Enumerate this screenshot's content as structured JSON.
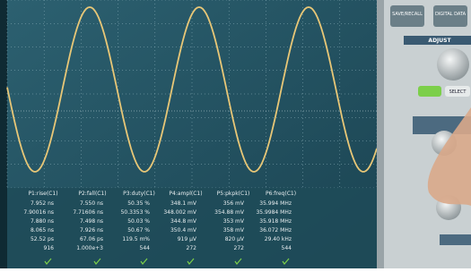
{
  "panel": {
    "buttons": [
      "SAVE/RECALL",
      "DIGITAL DATA"
    ],
    "adjust": "ADJUST",
    "select": "SELECT"
  },
  "measurements": {
    "columns": [
      {
        "header": "P1:rise(C1)",
        "values": [
          "7.952 ns",
          "7.90016 ns",
          "7.880 ns",
          "8.065 ns",
          "52.52 ps",
          "916"
        ]
      },
      {
        "header": "P2:fall(C1)",
        "values": [
          "7.550 ns",
          "7.71606 ns",
          "7.498 ns",
          "7.926 ns",
          "67.06 ps",
          "1.000e+3"
        ]
      },
      {
        "header": "P3:duty(C1)",
        "values": [
          "50.35 %",
          "50.3353 %",
          "50.03 %",
          "50.67 %",
          "119.5 m%",
          "544"
        ]
      },
      {
        "header": "P4:ampl(C1)",
        "values": [
          "348.1 mV",
          "348.002 mV",
          "344.8 mV",
          "350.4 mV",
          "919 µV",
          "272"
        ]
      },
      {
        "header": "P5:pkpk(C1)",
        "values": [
          "356 mV",
          "354.88 mV",
          "353 mV",
          "358 mV",
          "820 µV",
          "272"
        ]
      },
      {
        "header": "P6:freq(C1)",
        "values": [
          "35.994 MHz",
          "35.9984 MHz",
          "35.918 MHz",
          "36.072 MHz",
          "29.40 kHz",
          "544"
        ]
      }
    ]
  }
}
